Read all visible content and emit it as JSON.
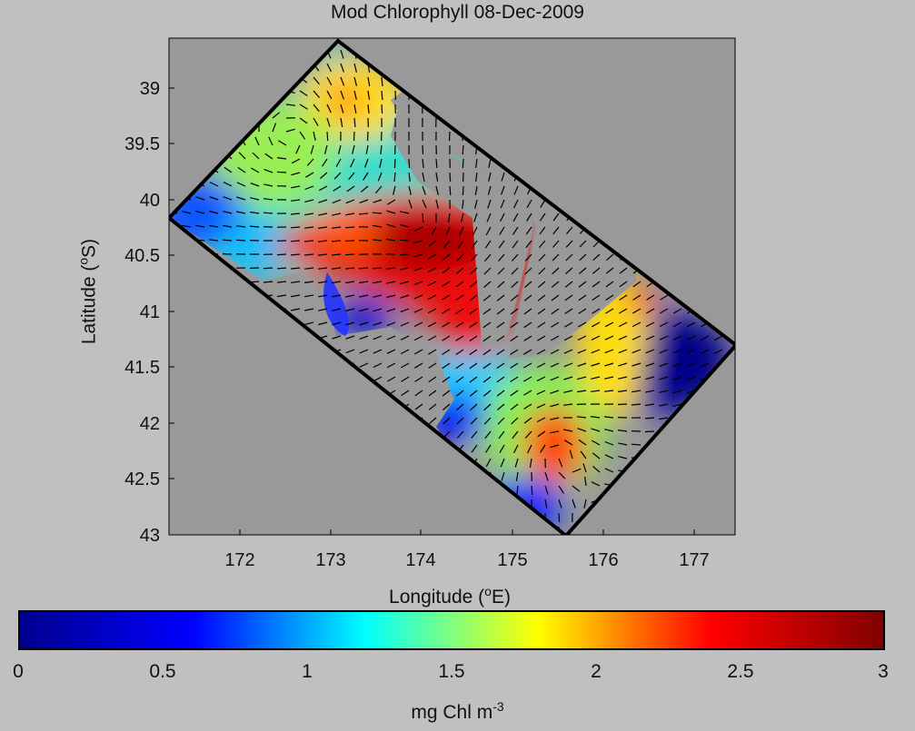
{
  "title": "Mod Chlorophyll 08-Dec-2009",
  "xlabel": {
    "text": "Longitude (",
    "sup": "o",
    "after": "E)"
  },
  "ylabel": {
    "text": "Latitude (",
    "sup": "o",
    "after": "S)"
  },
  "x_ticks": [
    "172",
    "173",
    "174",
    "175",
    "176",
    "177"
  ],
  "y_ticks": [
    "39",
    "39.5",
    "40",
    "40.5",
    "41",
    "41.5",
    "42",
    "42.5",
    "43"
  ],
  "colorbar": {
    "ticks": [
      "0",
      "0.5",
      "1",
      "1.5",
      "2",
      "2.5",
      "3"
    ],
    "label": {
      "text": "mg Chl m",
      "sup": "-3"
    },
    "colors": [
      "#00008f",
      "#0000ff",
      "#00ffff",
      "#ffff00",
      "#ff0000",
      "#800000"
    ]
  },
  "colors": {
    "background": "#c0c0c0",
    "land_mask": "#999999",
    "domain_border": "#000000",
    "current_vectors": "#000000"
  }
}
